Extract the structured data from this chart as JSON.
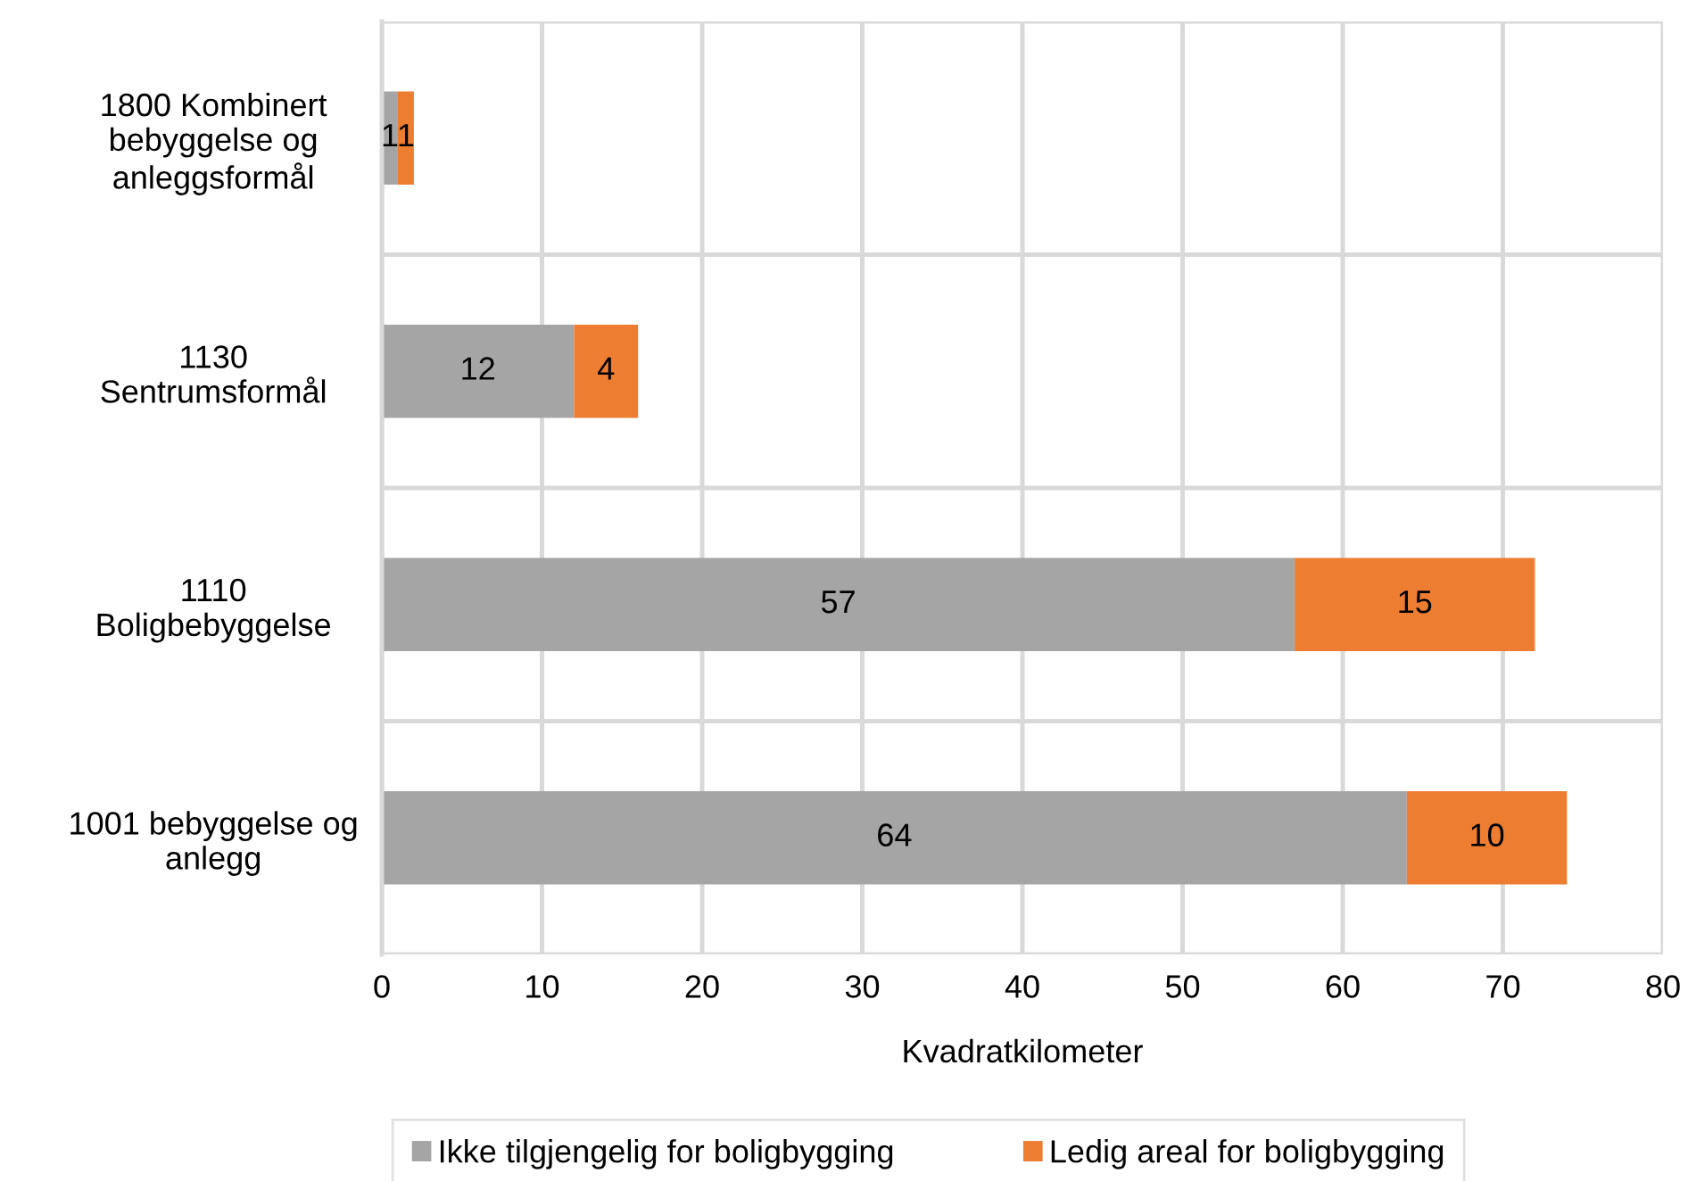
{
  "chart_data": {
    "type": "bar",
    "orientation": "horizontal",
    "stacked": true,
    "xlabel": "Kvadratkilometer",
    "categories": [
      "1800 Kombinert\nbebyggelse og\nanleggsformål",
      "1130\nSentrumsformål",
      "1110\nBoligbebyggelse",
      "1001 bebyggelse og\nanlegg"
    ],
    "series": [
      {
        "name": "Ikke tilgjengelig for boligbygging",
        "color": "#a5a5a5",
        "values": [
          1,
          12,
          57,
          64
        ]
      },
      {
        "name": "Ledig areal for boligbygging",
        "color": "#ed7d31",
        "values": [
          1,
          4,
          15,
          10
        ]
      }
    ],
    "xlim": [
      0,
      80
    ],
    "xticks": [
      0,
      10,
      20,
      30,
      40,
      50,
      60,
      70,
      80
    ],
    "grid": true,
    "data_labels": true,
    "legend": "bottom"
  }
}
